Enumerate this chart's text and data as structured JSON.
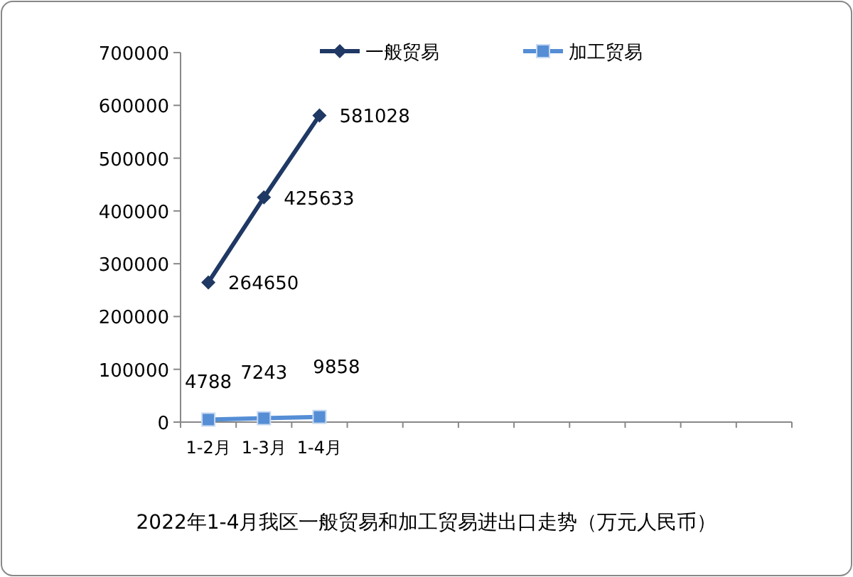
{
  "chart_data": {
    "type": "line",
    "title": "2022年1-4月我区一般贸易和加工贸易进出口走势（万元人民币）",
    "categories": [
      "1-2月",
      "1-3月",
      "1-4月",
      null,
      null,
      null,
      null,
      null,
      null,
      null,
      null
    ],
    "series": [
      {
        "name": "一般贸易",
        "color": "#1f3864",
        "marker": "diamond",
        "values": [
          264650,
          425633,
          581028,
          null,
          null,
          null,
          null,
          null,
          null,
          null,
          null
        ]
      },
      {
        "name": "加工贸易",
        "color": "#558ed5",
        "marker": "square",
        "values": [
          4788,
          7243,
          9858,
          null,
          null,
          null,
          null,
          null,
          null,
          null,
          null
        ]
      }
    ],
    "ylim": [
      0,
      700000
    ],
    "yticks": [
      0,
      100000,
      200000,
      300000,
      400000,
      500000,
      600000,
      700000
    ],
    "grid": false,
    "legend": "top",
    "data_labels": true
  }
}
